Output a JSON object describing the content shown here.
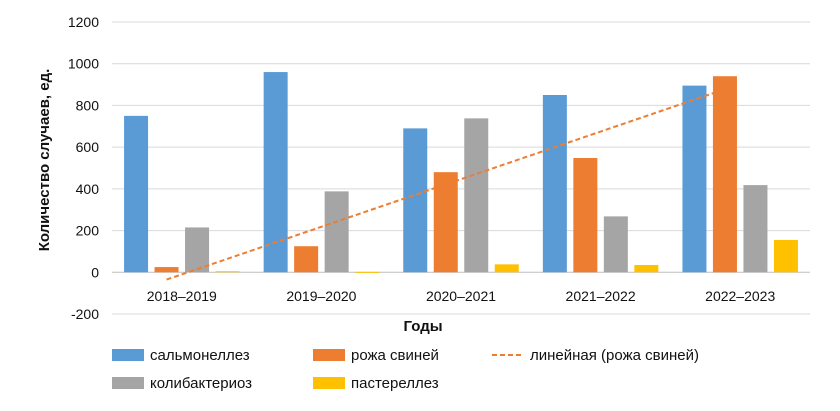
{
  "chart_data": {
    "type": "bar",
    "xlabel": "Годы",
    "ylabel": "Количество случаев, ед.",
    "ylim": [
      -200,
      1200
    ],
    "yticks": [
      -200,
      0,
      200,
      400,
      600,
      800,
      1000,
      1200
    ],
    "categories": [
      "2018–2019",
      "2019–2020",
      "2020–2021",
      "2021–2022",
      "2022–2023"
    ],
    "series": [
      {
        "name": "сальмонеллез",
        "color": "#5b9bd5",
        "values": [
          750,
          960,
          690,
          850,
          895
        ]
      },
      {
        "name": "рожа свиней",
        "color": "#ed7d31",
        "values": [
          25,
          125,
          480,
          548,
          940
        ]
      },
      {
        "name": "колибактериоз",
        "color": "#a5a5a5",
        "values": [
          215,
          388,
          738,
          268,
          418
        ]
      },
      {
        "name": "пастереллез",
        "color": "#ffc000",
        "values": [
          5,
          2,
          38,
          35,
          155
        ]
      }
    ],
    "trendline": {
      "name": "линейная (рожа свиней)",
      "color": "#ed7d31",
      "style": "dashed",
      "series": "рожа свиней",
      "start": -35,
      "end": 878
    },
    "grid": true,
    "legend_position": "bottom"
  }
}
